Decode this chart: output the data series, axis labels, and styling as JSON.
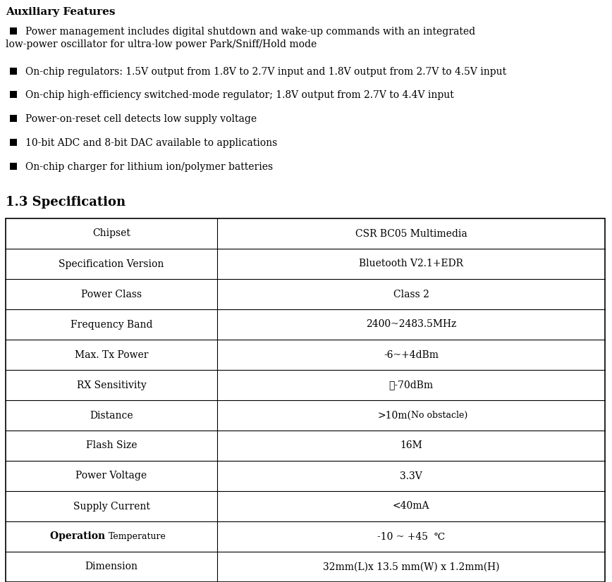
{
  "title": "Auxiliary Features",
  "bullet1_line1": "Power management includes digital shutdown and wake-up commands with an integrated",
  "bullet1_line2": "low-power oscillator for ultra-low power Park/Sniff/Hold mode",
  "bullet2": "On-chip regulators: 1.5V output from 1.8V to 2.7V input and 1.8V output from 2.7V to 4.5V input",
  "bullet3": "On-chip high-efficiency switched-mode regulator; 1.8V output from 2.7V to 4.4V input",
  "bullet4": "Power-on-reset cell detects low supply voltage",
  "bullet5": "10-bit ADC and 8-bit DAC available to applications",
  "bullet6": "On-chip charger for lithium ion/polymer batteries",
  "section_title": "1.3 Specification",
  "table_rows": [
    [
      "Chipset",
      "CSR BC05 Multimedia"
    ],
    [
      "Specification Version",
      "Bluetooth V2.1+EDR"
    ],
    [
      "Power Class",
      "Class 2"
    ],
    [
      "Frequency Band",
      "2400~2483.5MHz"
    ],
    [
      "Max. Tx Power",
      "-6~+4dBm"
    ],
    [
      "RX Sensitivity",
      "<-70dBm"
    ],
    [
      "Distance",
      ">10m(No obstacle)"
    ],
    [
      "Flash Size",
      "16M"
    ],
    [
      "Power Voltage",
      "3.3V"
    ],
    [
      "Supply Current",
      "<40mA"
    ],
    [
      "Operation Temperature",
      "-10 ~ +45  ℃"
    ],
    [
      "Dimension",
      "32mm(L)x 13.5 mm(W) x 1.2mm(H)"
    ]
  ],
  "rx_sensitivity_value": "＜-70dBm",
  "bg_color": "#ffffff",
  "text_color": "#000000",
  "table_border_color": "#000000",
  "title_fontsize": 11,
  "bullet_fontsize": 10,
  "section_fontsize": 13,
  "table_fontsize": 10,
  "fig_width": 8.68,
  "fig_height": 8.26,
  "dpi": 100
}
